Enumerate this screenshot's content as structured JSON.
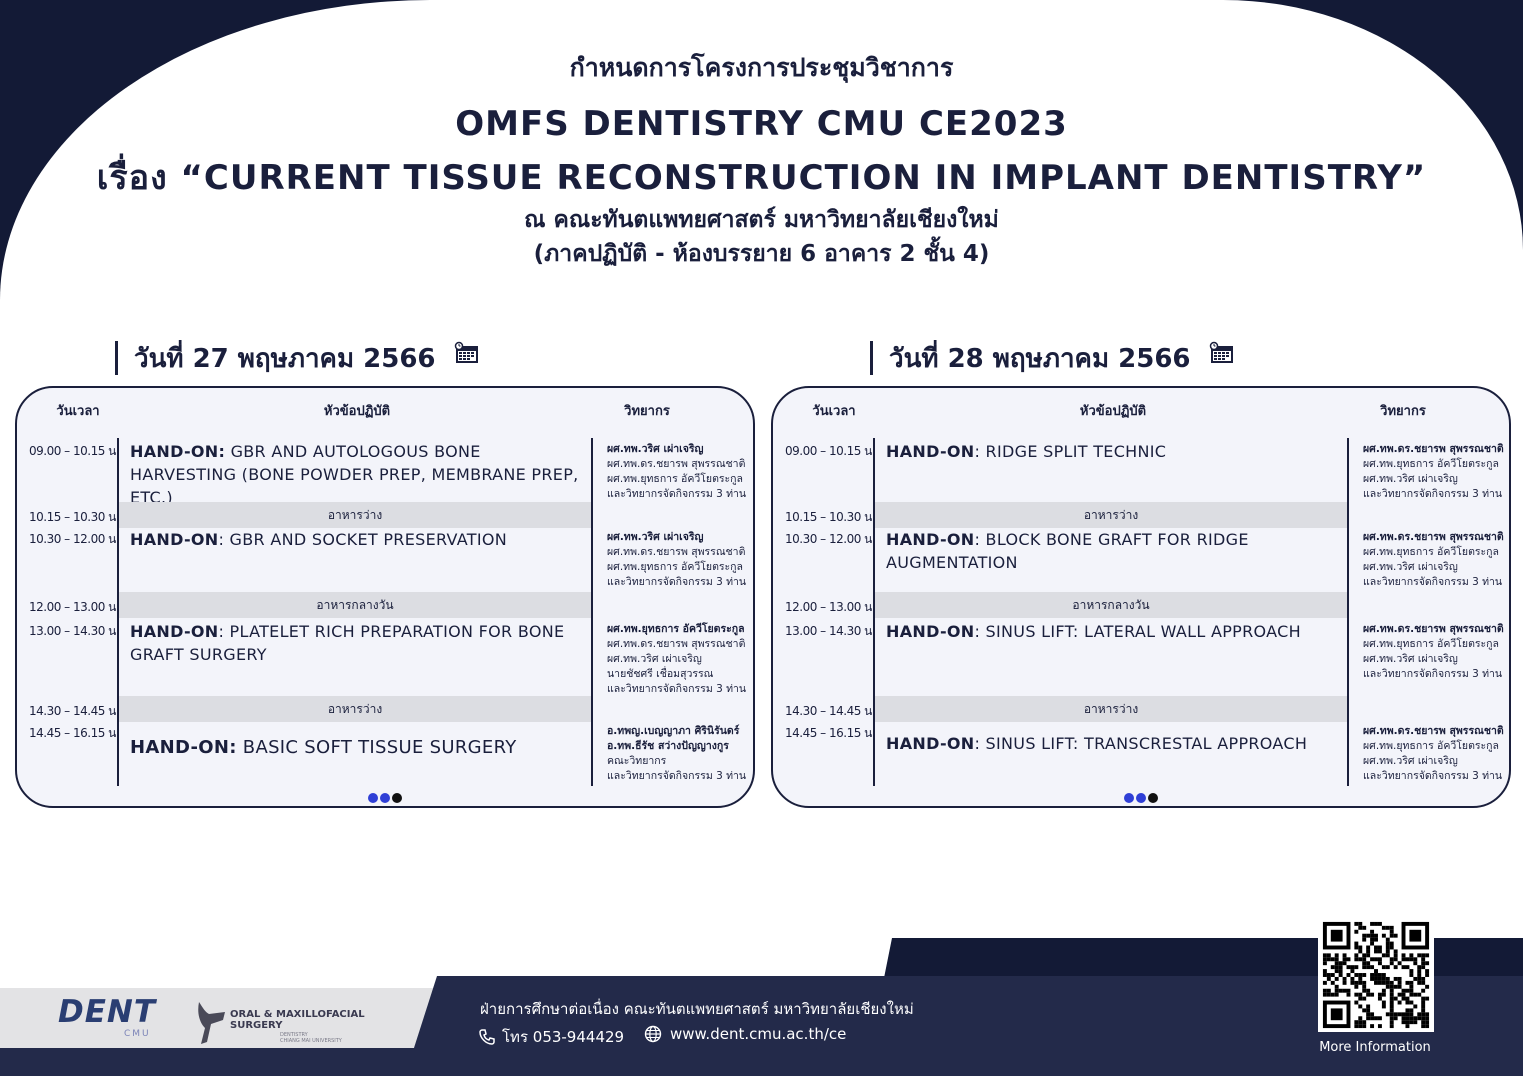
{
  "header": {
    "line1": "กำหนดการโครงการประชุมวิชาการ",
    "line2": "OMFS DENTISTRY CMU CE2023",
    "line3": "เรื่อง “CURRENT TISSUE RECONSTRUCTION IN IMPLANT DENTISTRY”",
    "line4": "ณ คณะทันตแพทยศาสตร์ มหาวิทยาลัยเชียงใหม่",
    "line5": "(ภาคปฏิบัติ - ห้องบรรยาย 6 อาคาร 2 ชั้น 4)"
  },
  "columns": {
    "time": "วันเวลา",
    "topic": "หัวข้อปฏิบัติ",
    "speaker": "วิทยากร"
  },
  "days": [
    {
      "title": "วันที่ 27 พฤษภาคม 2566",
      "rows": [
        {
          "time": "09.00 – 10.15 น.",
          "prefix": "HAND-ON:",
          "topic": " GBR AND AUTOLOGOUS BONE HARVESTING (BONE POWDER PREP, MEMBRANE PREP, ETC.)",
          "speakers": [
            "ผศ.ทพ.วริศ เผ่าเจริญ",
            "ผศ.ทพ.ดร.ชยารพ สุพรรณชาติ",
            "ผศ.ทพ.ยุทธการ อัควีโยตระกูล",
            "และวิทยากรจัดกิจกรรม 3 ท่าน"
          ]
        },
        {
          "time": "10.15 – 10.30 น.",
          "break": "อาหารว่าง"
        },
        {
          "time": "10.30 – 12.00 น.",
          "prefix": "HAND-ON",
          "topic": ": GBR AND SOCKET PRESERVATION",
          "speakers": [
            "ผศ.ทพ.วริศ เผ่าเจริญ",
            "ผศ.ทพ.ดร.ชยารพ สุพรรณชาติ",
            "ผศ.ทพ.ยุทธการ อัควีโยตระกูล",
            "และวิทยากรจัดกิจกรรม 3 ท่าน"
          ]
        },
        {
          "time": "12.00 – 13.00 น.",
          "break": "อาหารกลางวัน"
        },
        {
          "time": "13.00 – 14.30 น.",
          "prefix": "HAND-ON",
          "topic": ": PLATELET RICH PREPARATION FOR BONE GRAFT SURGERY",
          "speakers": [
            "ผศ.ทพ.ยุทธการ อัควีโยตระกูล",
            "ผศ.ทพ.ดร.ชยารพ สุพรรณชาติ",
            "ผศ.ทพ.วริศ เผ่าเจริญ",
            "นายชัชศรี เชื่อมสุวรรณ",
            "และวิทยากรจัดกิจกรรม 3 ท่าน"
          ]
        },
        {
          "time": "14.30 – 14.45 น.",
          "break": "อาหารว่าง"
        },
        {
          "time": "14.45 – 16.15 น.",
          "prefix": "HAND-ON:",
          "topic": " BASIC SOFT TISSUE SURGERY",
          "speakers": [
            "อ.ทพญ.เบญญาภา ศิรินิรันดร์",
            "อ.ทพ.ธีรัช สว่างปัญญางกูร",
            "คณะวิทยากร",
            "และวิทยากรจัดกิจกรรม 3 ท่าน"
          ]
        }
      ]
    },
    {
      "title": "วันที่ 28 พฤษภาคม 2566",
      "rows": [
        {
          "time": "09.00 – 10.15 น.",
          "prefix": "HAND-ON",
          "topic": ": RIDGE SPLIT TECHNIC",
          "speakers": [
            "ผศ.ทพ.ดร.ชยารพ สุพรรณชาติ",
            "ผศ.ทพ.ยุทธการ อัควีโยตระกูล",
            "ผศ.ทพ.วริศ เผ่าเจริญ",
            "และวิทยากรจัดกิจกรรม 3 ท่าน"
          ]
        },
        {
          "time": "10.15 – 10.30 น.",
          "break": "อาหารว่าง"
        },
        {
          "time": "10.30 – 12.00 น.",
          "prefix": "HAND-ON",
          "topic": ": BLOCK BONE GRAFT FOR RIDGE AUGMENTATION",
          "speakers": [
            "ผศ.ทพ.ดร.ชยารพ สุพรรณชาติ",
            "ผศ.ทพ.ยุทธการ อัควีโยตระกูล",
            "ผศ.ทพ.วริศ เผ่าเจริญ",
            "และวิทยากรจัดกิจกรรม 3 ท่าน"
          ]
        },
        {
          "time": "12.00 – 13.00 น.",
          "break": "อาหารกลางวัน"
        },
        {
          "time": "13.00 – 14.30 น.",
          "prefix": "HAND-ON",
          "topic": ": SINUS LIFT: LATERAL WALL APPROACH",
          "speakers": [
            "ผศ.ทพ.ดร.ชยารพ สุพรรณชาติ",
            "ผศ.ทพ.ยุทธการ อัควีโยตระกูล",
            "ผศ.ทพ.วริศ เผ่าเจริญ",
            "และวิทยากรจัดกิจกรรม 3 ท่าน"
          ]
        },
        {
          "time": "14.30 – 14.45 น.",
          "break": "อาหารว่าง"
        },
        {
          "time": "14.45 – 16.15 น.",
          "prefix": "HAND-ON",
          "topic": ": SINUS LIFT: TRANSCRESTAL APPROACH",
          "speakers": [
            "ผศ.ทพ.ดร.ชยารพ สุพรรณชาติ",
            "ผศ.ทพ.ยุทธการ อัควีโยตระกูล",
            "ผศ.ทพ.วริศ เผ่าเจริญ",
            "และวิทยากรจัดกิจกรรม 3 ท่าน"
          ]
        }
      ]
    }
  ],
  "footer": {
    "logo_dent": "DENT",
    "logo_cmu": "CMU",
    "logo_omfs_line1": "ORAL & MAXILLOFACIAL",
    "logo_omfs_line2": "SURGERY",
    "logo_omfs_sub1": "DENTISTRY",
    "logo_omfs_sub2": "CHIANG MAI UNIVERSITY",
    "department": "ฝ่ายการศึกษาต่อเนื่อง คณะทันตแพทยศาสตร์ มหาวิทยาลัยเชียงใหม่",
    "phone": "โทร 053-944429",
    "website": "www.dent.cmu.ac.th/ce",
    "more_info": "More Information",
    "icons": [
      "phone-icon",
      "globe-icon",
      "qr-code",
      "calendar-icon"
    ]
  },
  "colors": {
    "navy": "#131a36",
    "footer_navy": "#232a4a",
    "panel_bg": "#f3f4fa",
    "break_band": "#dcdde2",
    "dot_blue": "#2f3fd6",
    "dot_dark": "#111111"
  }
}
